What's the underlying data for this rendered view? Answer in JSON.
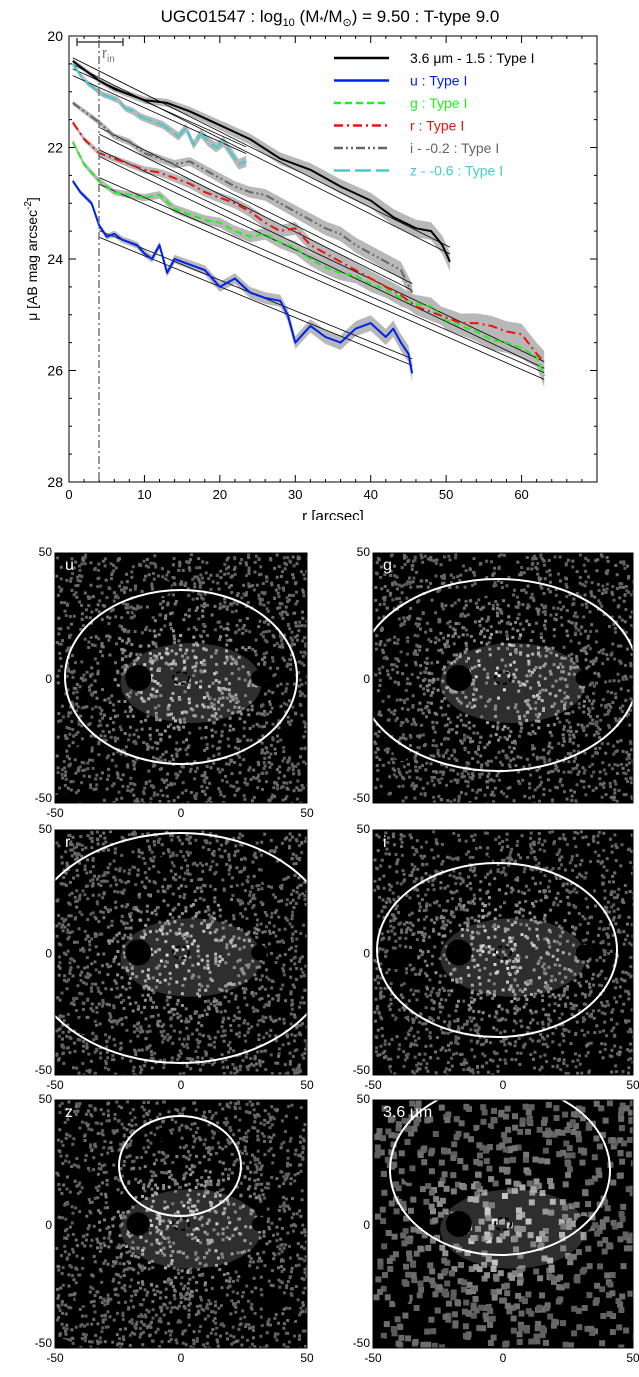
{
  "chart_data": [
    {
      "type": "line",
      "title": "UGC01547 : log",
      "title_sub": "10",
      "title_mid": " (M",
      "title_star": "*",
      "title_mid2": "/M",
      "title_sun": "⊙",
      "title_end": ") = 9.50 : T-type 9.0",
      "xlabel": "r [arcsec]",
      "ylabel": "μ [AB mag arcsec",
      "ylabel_sup": "-2",
      "ylabel_end": "]",
      "xlim": [
        0,
        70
      ],
      "ylim": [
        28,
        20
      ],
      "x_ticks": [
        0,
        10,
        20,
        30,
        40,
        50,
        60
      ],
      "y_ticks": [
        20,
        22,
        24,
        26,
        28
      ],
      "r_in_marker": {
        "label": "r",
        "label_sub": "in",
        "value": 4
      },
      "legend_position": "top-right",
      "legend": [
        {
          "text": "3.6 μm - 1.5 : Type I",
          "color": "#000000"
        },
        {
          "text": "u : Type I",
          "color": "#0022ee"
        },
        {
          "text": "g : Type I",
          "color": "#22ee22"
        },
        {
          "text": "r : Type I",
          "color": "#ee1111"
        },
        {
          "text": "i - -0.2 : Type I",
          "color": "#666666"
        },
        {
          "text": "z - -0.6 : Type I",
          "color": "#44cccc"
        }
      ],
      "series": [
        {
          "name": "3.6 μm - 1.5 : Type I",
          "color": "#000000",
          "dash": "",
          "x": [
            0.5,
            2,
            4,
            6,
            8,
            10,
            13,
            16,
            20,
            24,
            28,
            32,
            36,
            40,
            43,
            46,
            48,
            49.5,
            50.5
          ],
          "y": [
            20.45,
            20.6,
            20.8,
            20.95,
            21.05,
            21.15,
            21.2,
            21.35,
            21.6,
            21.85,
            22.2,
            22.4,
            22.7,
            22.95,
            23.25,
            23.45,
            23.5,
            23.75,
            24.05
          ],
          "fit": {
            "x0": 0.5,
            "y0": 20.45,
            "x1": 50.5,
            "y1": 23.85
          }
        },
        {
          "name": "u : Type I",
          "color": "#0022ee",
          "dash": "",
          "x": [
            0.5,
            1.5,
            3,
            4,
            5,
            6,
            7,
            8,
            9,
            10,
            11,
            12,
            13,
            14,
            16,
            18,
            20,
            22,
            24,
            26,
            28,
            29,
            30,
            31,
            32,
            34,
            36,
            38,
            40,
            42,
            43,
            44,
            45,
            45.5
          ],
          "y": [
            22.6,
            22.8,
            23.0,
            23.4,
            23.6,
            23.55,
            23.65,
            23.7,
            23.75,
            23.9,
            24.0,
            23.75,
            24.25,
            24.0,
            24.1,
            24.2,
            24.5,
            24.35,
            24.6,
            24.7,
            24.75,
            25.0,
            25.5,
            25.35,
            25.2,
            25.4,
            25.5,
            25.25,
            25.15,
            25.4,
            25.25,
            25.5,
            25.7,
            26.05
          ],
          "fit": {
            "x0": 4,
            "y0": 23.55,
            "x1": 45.5,
            "y1": 25.85
          }
        },
        {
          "name": "g : Type I",
          "color": "#22ee22",
          "dash": "7,4",
          "x": [
            0.5,
            2,
            4,
            6,
            8,
            10,
            12,
            14,
            16,
            18,
            20,
            22,
            24,
            26,
            28,
            30,
            32,
            34,
            36,
            38,
            40,
            42,
            44,
            46,
            48,
            50,
            52,
            54,
            56,
            58,
            60,
            62,
            63
          ],
          "y": [
            21.9,
            22.3,
            22.6,
            22.8,
            22.85,
            22.9,
            22.85,
            23.1,
            23.2,
            23.3,
            23.35,
            23.5,
            23.6,
            23.55,
            23.7,
            23.8,
            24.0,
            24.15,
            24.25,
            24.3,
            24.45,
            24.55,
            24.7,
            24.8,
            24.85,
            25.1,
            25.2,
            25.3,
            25.45,
            25.5,
            25.6,
            25.75,
            26.1
          ],
          "fit": {
            "x0": 4,
            "y0": 22.6,
            "x1": 63,
            "y1": 26.1
          }
        },
        {
          "name": "r : Type I",
          "color": "#ee1111",
          "dash": "9,4,2,4",
          "x": [
            0.5,
            2,
            4,
            6,
            8,
            10,
            12,
            14,
            16,
            18,
            20,
            22,
            24,
            26,
            28,
            30,
            32,
            34,
            36,
            38,
            40,
            42,
            44,
            46,
            48,
            50,
            52,
            54,
            56,
            58,
            60,
            62,
            63
          ],
          "y": [
            21.55,
            21.85,
            22.1,
            22.2,
            22.3,
            22.4,
            22.45,
            22.55,
            22.65,
            22.8,
            22.9,
            23.0,
            23.15,
            23.35,
            23.5,
            23.45,
            23.75,
            23.9,
            24.05,
            24.2,
            24.35,
            24.5,
            24.65,
            24.85,
            24.95,
            25.05,
            25.15,
            25.15,
            25.2,
            25.3,
            25.35,
            25.7,
            25.85
          ],
          "fit": {
            "x0": 4,
            "y0": 22.1,
            "x1": 63,
            "y1": 25.9
          }
        },
        {
          "name": "i - -0.2 : Type I",
          "color": "#666666",
          "dash": "9,3,2,3,2,3",
          "x": [
            0.5,
            2,
            4,
            6,
            8,
            10,
            12,
            14,
            16,
            18,
            20,
            22,
            24,
            26,
            28,
            30,
            32,
            34,
            36,
            38,
            40,
            42,
            44,
            45.5
          ],
          "y": [
            21.2,
            21.35,
            21.55,
            21.8,
            21.9,
            22.1,
            22.2,
            22.3,
            22.25,
            22.4,
            22.55,
            22.7,
            22.8,
            22.85,
            23.0,
            23.15,
            23.3,
            23.45,
            23.55,
            23.75,
            23.9,
            24.05,
            24.2,
            24.6
          ],
          "fit": {
            "x0": 4,
            "y0": 21.7,
            "x1": 45.5,
            "y1": 24.5
          }
        },
        {
          "name": "z - -0.6 : Type I",
          "color": "#44cccc",
          "dash": "16,5",
          "x": [
            0.5,
            1.5,
            2.5,
            3.5,
            4.5,
            5.5,
            6.5,
            7.5,
            8.5,
            9.5,
            10.5,
            11.5,
            12.5,
            13.5,
            14.5,
            15.5,
            16.5,
            17.5,
            18.5,
            19.5,
            20.5,
            21.5,
            22.5,
            23.5
          ],
          "y": [
            20.5,
            20.7,
            20.85,
            20.95,
            21.05,
            21.1,
            21.15,
            21.3,
            21.35,
            21.45,
            21.5,
            21.55,
            21.6,
            21.7,
            21.8,
            21.65,
            21.95,
            21.75,
            21.9,
            22.0,
            21.9,
            22.1,
            22.3,
            22.25
          ],
          "fit": {
            "x0": 0.5,
            "y0": 20.65,
            "x1": 23.5,
            "y1": 22.05
          }
        }
      ]
    }
  ],
  "image_panels": [
    {
      "band": "u",
      "x_ticks": [
        "-50",
        "0",
        "50"
      ],
      "y_ticks": [
        "50",
        "0",
        "-50"
      ]
    },
    {
      "band": "g",
      "x_ticks": [],
      "y_ticks": [
        "50",
        "0",
        "-50"
      ]
    },
    {
      "band": "r",
      "x_ticks": [
        "-50",
        "0",
        "50"
      ],
      "y_ticks": [
        "50",
        "0",
        "-50"
      ]
    },
    {
      "band": "i",
      "x_ticks": [
        "-50",
        "0",
        "50"
      ],
      "y_ticks": [
        "50",
        "0",
        "-50"
      ]
    },
    {
      "band": "z",
      "x_ticks": [
        "-50",
        "0",
        "50"
      ],
      "y_ticks": [
        "50",
        "0",
        "-50"
      ]
    },
    {
      "band": "3.6 μm",
      "x_ticks": [
        "-50",
        "0",
        "50"
      ],
      "y_ticks": [
        "50",
        "0",
        "-50"
      ]
    }
  ],
  "colors": {
    "band_bg": "#000000",
    "ellipse": "#ffffff",
    "axis": "#000000"
  }
}
